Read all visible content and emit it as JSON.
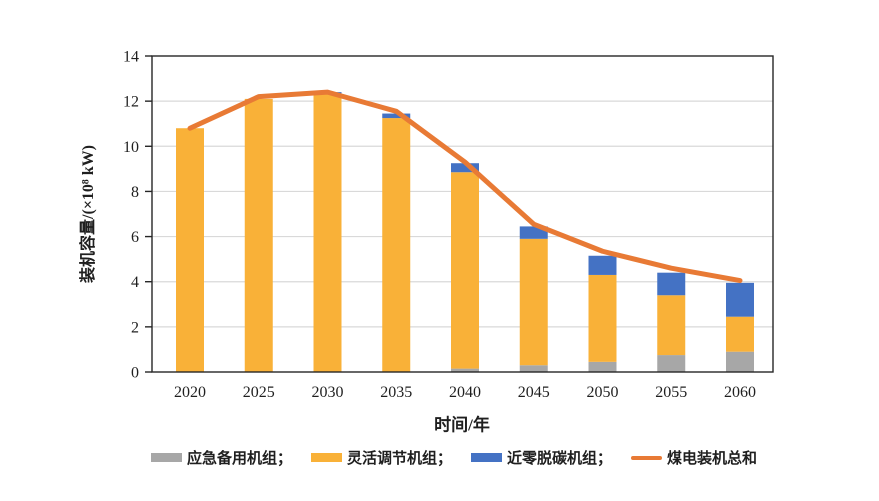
{
  "chart_data": {
    "type": "bar",
    "subtype": "stacked-bars-with-total-line",
    "categories": [
      "2020",
      "2025",
      "2030",
      "2035",
      "2040",
      "2045",
      "2050",
      "2055",
      "2060"
    ],
    "series": [
      {
        "name": "应急备用机组",
        "type": "bar",
        "color": "#A7A7A7",
        "values": [
          0,
          0,
          0,
          0,
          0.15,
          0.3,
          0.45,
          0.75,
          0.9
        ]
      },
      {
        "name": "灵活调节机组",
        "type": "bar",
        "color": "#F9B138",
        "values": [
          10.8,
          12.1,
          12.3,
          11.25,
          8.7,
          5.6,
          3.85,
          2.65,
          1.55
        ]
      },
      {
        "name": "近零脱碳机组",
        "type": "bar",
        "color": "#4472C4",
        "values": [
          0,
          0,
          0.1,
          0.2,
          0.4,
          0.55,
          0.85,
          1.0,
          1.5
        ]
      },
      {
        "name": "煤电装机总和",
        "type": "line",
        "color": "#E87A35",
        "values": [
          10.8,
          12.2,
          12.4,
          11.55,
          9.3,
          6.55,
          5.35,
          4.6,
          4.05
        ]
      }
    ],
    "title": "",
    "xlabel": "时间/年",
    "ylabel": "装机容量/(×10⁸ kW)",
    "ylim": [
      0,
      14
    ],
    "yticks": [
      0,
      2,
      4,
      6,
      8,
      10,
      12,
      14
    ],
    "grid": true,
    "legend_position": "bottom",
    "legend": [
      {
        "label": "应急备用机组；",
        "color": "#A7A7A7",
        "marker": "swatch"
      },
      {
        "label": "灵活调节机组；",
        "color": "#F9B138",
        "marker": "swatch"
      },
      {
        "label": "近零脱碳机组；",
        "color": "#4472C4",
        "marker": "swatch"
      },
      {
        "label": "煤电装机总和",
        "color": "#E87A35",
        "marker": "line"
      }
    ],
    "colors": {
      "grid": "#D9D9D9",
      "frame": "#262626",
      "text": "#1f1f1f",
      "background": "#ffffff"
    }
  }
}
